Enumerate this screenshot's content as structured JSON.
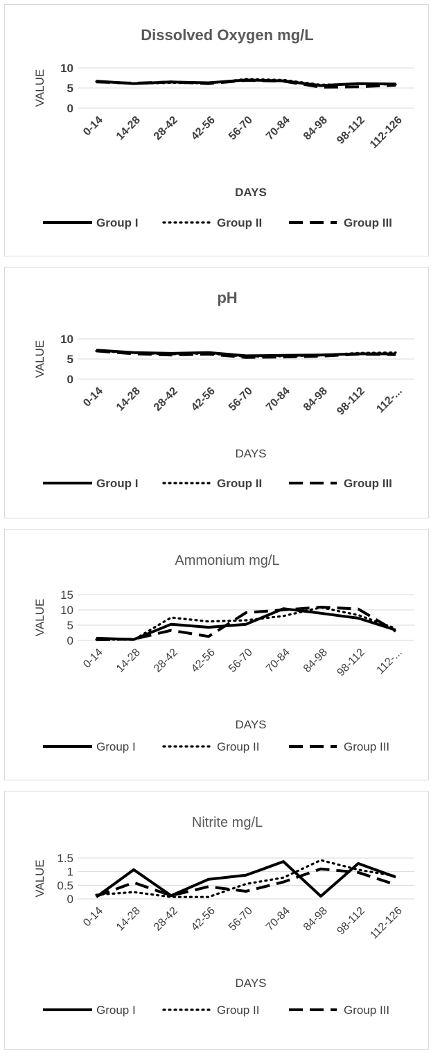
{
  "chart_data": [
    {
      "type": "line",
      "title": "Dissolved Oxygen mg/L",
      "title_bold": true,
      "xlabel": "DAYS",
      "ylabel": "VALUE",
      "bold": true,
      "categories": [
        "0-14",
        "14-28",
        "28-42",
        "42-56",
        "56-70",
        "70-84",
        "84-98",
        "98-112",
        "112-126"
      ],
      "yticks": [
        0,
        5,
        10
      ],
      "ytick_labels": [
        "0",
        "5",
        "10"
      ],
      "ylim": [
        0,
        10
      ],
      "grid": true,
      "legend_position": "bottom",
      "series": [
        {
          "name": "Group I",
          "values": [
            6.7,
            6.1,
            6.5,
            6.3,
            7.0,
            6.8,
            5.6,
            6.1,
            6.0
          ]
        },
        {
          "name": "Group II",
          "values": [
            6.6,
            6.1,
            6.3,
            6.2,
            7.2,
            7.0,
            5.8,
            6.0,
            5.9
          ]
        },
        {
          "name": "Group III",
          "values": [
            6.5,
            6.2,
            6.5,
            6.1,
            6.9,
            6.7,
            5.2,
            5.3,
            5.7
          ]
        }
      ]
    },
    {
      "type": "line",
      "title": "pH",
      "title_bold": true,
      "xlabel": "DAYS",
      "ylabel": "VALUE",
      "bold": true,
      "categories": [
        "0-14",
        "14-28",
        "28-42",
        "42-56",
        "56-70",
        "70-84",
        "84-98",
        "98-112",
        "112-..."
      ],
      "yticks": [
        0,
        5,
        10
      ],
      "ytick_labels": [
        "0",
        "5",
        "10"
      ],
      "ylim": [
        0,
        10
      ],
      "grid": true,
      "legend_position": "bottom",
      "series": [
        {
          "name": "Group I",
          "values": [
            7.2,
            6.6,
            6.4,
            6.6,
            5.8,
            5.9,
            6.0,
            6.3,
            6.3
          ]
        },
        {
          "name": "Group II",
          "values": [
            7.0,
            6.5,
            6.2,
            6.4,
            5.6,
            5.7,
            5.9,
            6.5,
            6.6
          ]
        },
        {
          "name": "Group III",
          "values": [
            7.0,
            6.3,
            6.0,
            6.2,
            5.4,
            5.5,
            5.7,
            6.2,
            6.1
          ]
        }
      ]
    },
    {
      "type": "line",
      "title": "Ammonium mg/L",
      "title_bold": false,
      "xlabel": "DAYS",
      "ylabel": "VALUE",
      "bold": false,
      "categories": [
        "0-14",
        "14-28",
        "28-42",
        "42-56",
        "56-70",
        "70-84",
        "84-98",
        "98-112",
        "112-..."
      ],
      "yticks": [
        0,
        5,
        10,
        15
      ],
      "ytick_labels": [
        "0",
        "5",
        "10",
        "15"
      ],
      "ylim": [
        0,
        15
      ],
      "grid": true,
      "legend_position": "bottom",
      "series": [
        {
          "name": "Group I",
          "values": [
            0.7,
            0.3,
            5.3,
            4.3,
            5.3,
            10.4,
            8.9,
            7.3,
            3.4
          ]
        },
        {
          "name": "Group II",
          "values": [
            0.3,
            0.2,
            7.5,
            6.2,
            6.6,
            8.0,
            10.8,
            8.3,
            3.9
          ]
        },
        {
          "name": "Group III",
          "values": [
            0.2,
            0.4,
            3.3,
            1.3,
            9.1,
            10.0,
            10.9,
            10.3,
            3.0
          ]
        }
      ]
    },
    {
      "type": "line",
      "title": "Nitrite mg/L",
      "title_bold": false,
      "xlabel": "DAYS",
      "ylabel": "VALUE",
      "bold": false,
      "categories": [
        "0-14",
        "14-28",
        "28-42",
        "42-56",
        "56-70",
        "70-84",
        "84-98",
        "98-112",
        "112-126"
      ],
      "yticks": [
        0,
        0.5,
        1,
        1.5
      ],
      "ytick_labels": [
        "0",
        "0.5",
        "1",
        "1.5"
      ],
      "ylim": [
        0,
        1.5
      ],
      "grid": true,
      "legend_position": "bottom",
      "series": [
        {
          "name": "Group I",
          "values": [
            0.07,
            1.07,
            0.12,
            0.72,
            0.87,
            1.37,
            0.1,
            1.3,
            0.8
          ]
        },
        {
          "name": "Group II",
          "values": [
            0.15,
            0.25,
            0.07,
            0.07,
            0.55,
            0.78,
            1.42,
            1.07,
            0.84
          ]
        },
        {
          "name": "Group III",
          "values": [
            0.1,
            0.6,
            0.12,
            0.45,
            0.28,
            0.62,
            1.1,
            0.97,
            0.52
          ]
        }
      ]
    }
  ]
}
